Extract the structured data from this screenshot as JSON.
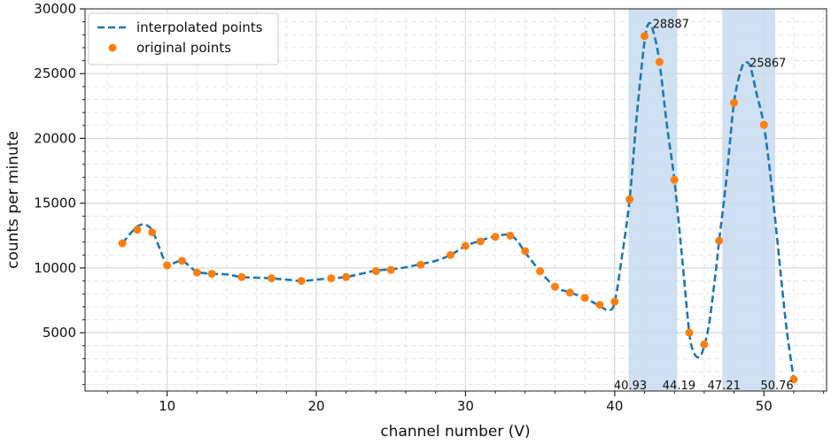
{
  "chart_data": {
    "type": "line",
    "title": "",
    "xlabel": "channel number (V)",
    "ylabel": "counts per minute",
    "xlim": [
      4.5,
      54.2
    ],
    "ylim": [
      500,
      30000
    ],
    "x_ticks": [
      10,
      20,
      30,
      40,
      50
    ],
    "x_tick_labels": [
      "10",
      "20",
      "30",
      "40",
      "50"
    ],
    "y_ticks": [
      5000,
      10000,
      15000,
      20000,
      25000,
      30000
    ],
    "y_tick_labels": [
      "5000",
      "10000",
      "15000",
      "20000",
      "25000",
      "30000"
    ],
    "grid": true,
    "minor_grid": true,
    "legend_position": "top-left",
    "series": [
      {
        "name": "interpolated points",
        "style": "dashed-line",
        "color": "#1f77b4",
        "x": [
          7,
          7.5,
          8,
          8.5,
          9,
          9.5,
          10,
          10.5,
          11,
          11.5,
          12,
          13,
          14,
          15,
          16,
          17,
          18,
          19,
          20,
          21,
          22,
          23,
          24,
          25,
          26,
          27,
          28,
          29,
          30,
          31,
          31.5,
          32,
          32.5,
          33,
          33.5,
          34,
          35,
          36,
          37,
          38,
          39,
          39.6,
          40,
          40.5,
          41,
          41.5,
          42,
          42.3,
          42.6,
          43,
          43.5,
          44,
          44.5,
          45,
          45.3,
          45.6,
          45.9,
          46.3,
          46.7,
          47,
          47.5,
          48,
          48.5,
          48.8,
          49.1,
          49.5,
          50,
          50.5,
          51,
          51.5,
          52
        ],
        "y": [
          11900,
          12600,
          13200,
          13350,
          12900,
          11500,
          10200,
          10400,
          10550,
          10150,
          9700,
          9550,
          9500,
          9300,
          9250,
          9200,
          9100,
          9000,
          9100,
          9200,
          9300,
          9550,
          9800,
          9900,
          10050,
          10300,
          10550,
          11000,
          11700,
          12100,
          12300,
          12450,
          12550,
          12550,
          12050,
          11200,
          9750,
          8550,
          8100,
          7700,
          7050,
          6750,
          7350,
          11000,
          15300,
          22000,
          27500,
          28887,
          28200,
          25900,
          21000,
          16800,
          11000,
          5000,
          3500,
          3100,
          3600,
          5500,
          9000,
          12100,
          17000,
          22800,
          25400,
          25867,
          25500,
          23500,
          21000,
          16500,
          11000,
          5500,
          1400
        ],
        "peak_labels": [
          {
            "x": 42.3,
            "y": 28887,
            "text": "28887"
          },
          {
            "x": 48.8,
            "y": 25867,
            "text": "25867"
          }
        ]
      },
      {
        "name": "original points",
        "style": "markers",
        "color": "#ff7f0e",
        "x": [
          7,
          8,
          9,
          10,
          11,
          12,
          13,
          15,
          17,
          19,
          21,
          22,
          24,
          25,
          27,
          29,
          30,
          31,
          32,
          33,
          34,
          35,
          36,
          37,
          38,
          39,
          40,
          41,
          42,
          43,
          44,
          45,
          46,
          47,
          48,
          50,
          52
        ],
        "y": [
          11900,
          12950,
          12750,
          10200,
          10550,
          9650,
          9550,
          9300,
          9200,
          9000,
          9200,
          9300,
          9750,
          9850,
          10250,
          11000,
          11700,
          12050,
          12400,
          12500,
          11300,
          9750,
          8550,
          8100,
          7700,
          7150,
          7400,
          15300,
          27900,
          25900,
          16800,
          5000,
          4100,
          12100,
          22750,
          21050,
          1400
        ]
      }
    ],
    "highlight_bands": [
      {
        "x_start": 40.93,
        "x_end": 44.19,
        "start_label": "40.93",
        "end_label": "44.19",
        "color": "#c6dbef"
      },
      {
        "x_start": 47.21,
        "x_end": 50.76,
        "start_label": "47.21",
        "end_label": "50.76",
        "color": "#c6dbef"
      }
    ]
  }
}
